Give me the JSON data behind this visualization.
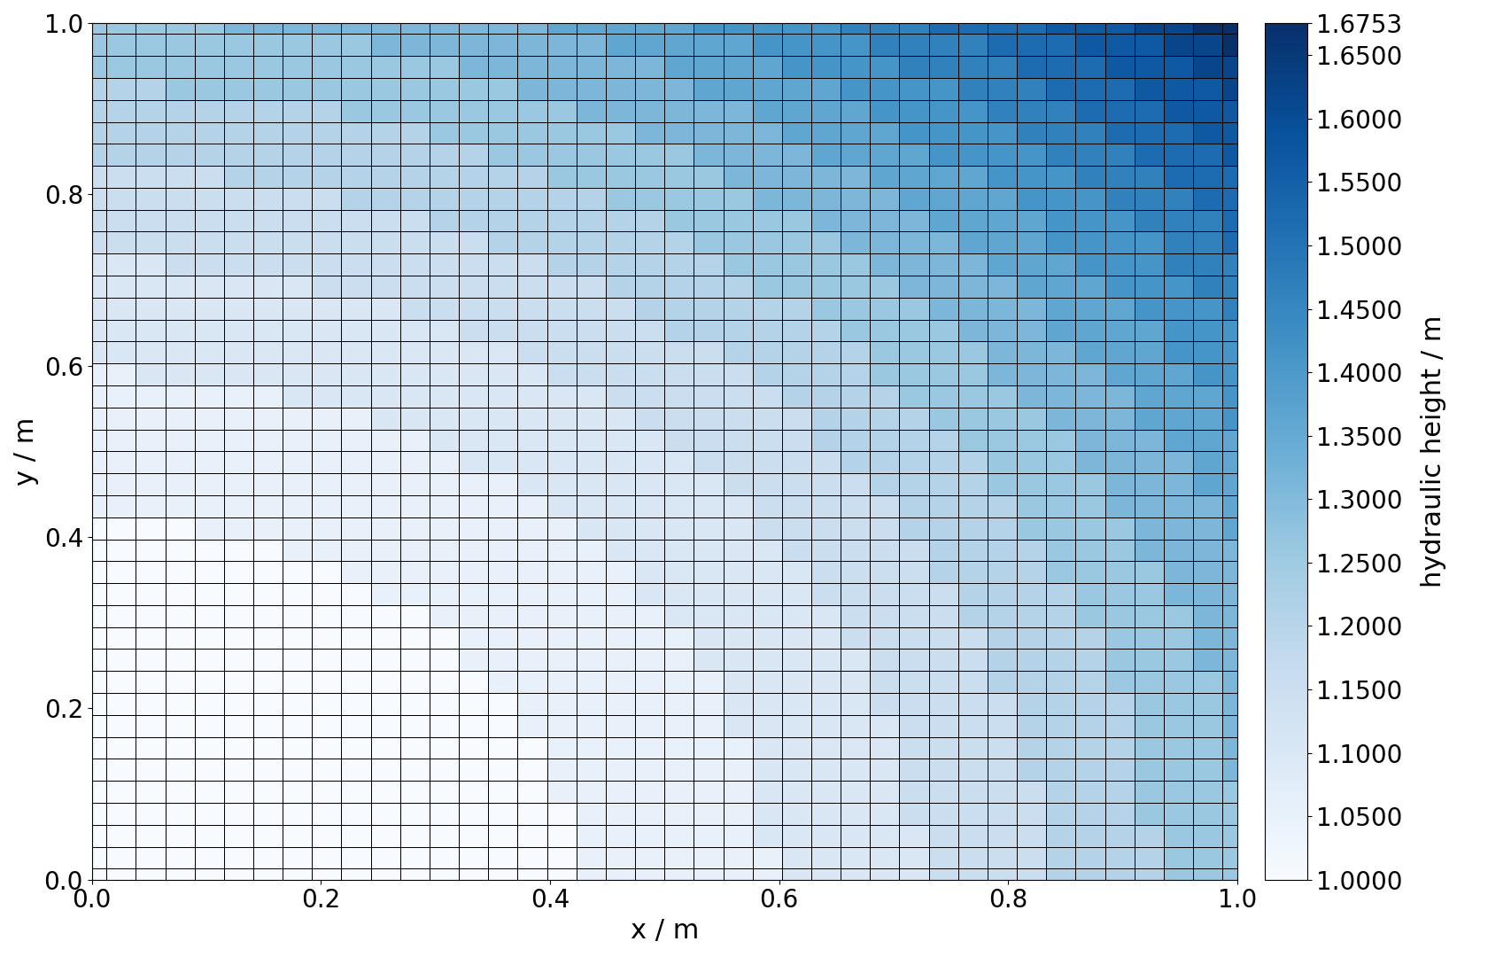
{
  "n_cells": 40,
  "xmin": 0.0,
  "xmax": 1.0,
  "ymin": 0.0,
  "ymax": 1.0,
  "vmin": 1.0,
  "vmax": 1.6753,
  "cmap": "Blues",
  "colorbar_ticks": [
    1.6753,
    1.65,
    1.6,
    1.55,
    1.5,
    1.45,
    1.4,
    1.35,
    1.3,
    1.25,
    1.2,
    1.15,
    1.1,
    1.05,
    1.0
  ],
  "colorbar_ticklabels": [
    "1.6753",
    "1.6500",
    "1.6000",
    "1.5500",
    "1.5000",
    "1.4500",
    "1.4000",
    "1.3500",
    "1.3000",
    "1.2500",
    "1.2000",
    "1.1500",
    "1.1000",
    "1.0500",
    "1.0000"
  ],
  "colorbar_label": "hydraulic height / m",
  "xlabel": "x / m",
  "ylabel": "y / m",
  "grid_color": "black",
  "grid_linewidth": 0.4,
  "xticks": [
    0.0,
    0.2,
    0.4,
    0.6,
    0.8,
    1.0
  ],
  "yticks": [
    0.0,
    0.2,
    0.4,
    0.6,
    0.8,
    1.0
  ],
  "figsize": [
    16.8,
    10.8
  ],
  "dpi": 100,
  "background_color": "white",
  "tick_fontsize": 20,
  "label_fontsize": 22,
  "colorbar_fontsize": 20,
  "colorbar_label_fontsize": 22
}
